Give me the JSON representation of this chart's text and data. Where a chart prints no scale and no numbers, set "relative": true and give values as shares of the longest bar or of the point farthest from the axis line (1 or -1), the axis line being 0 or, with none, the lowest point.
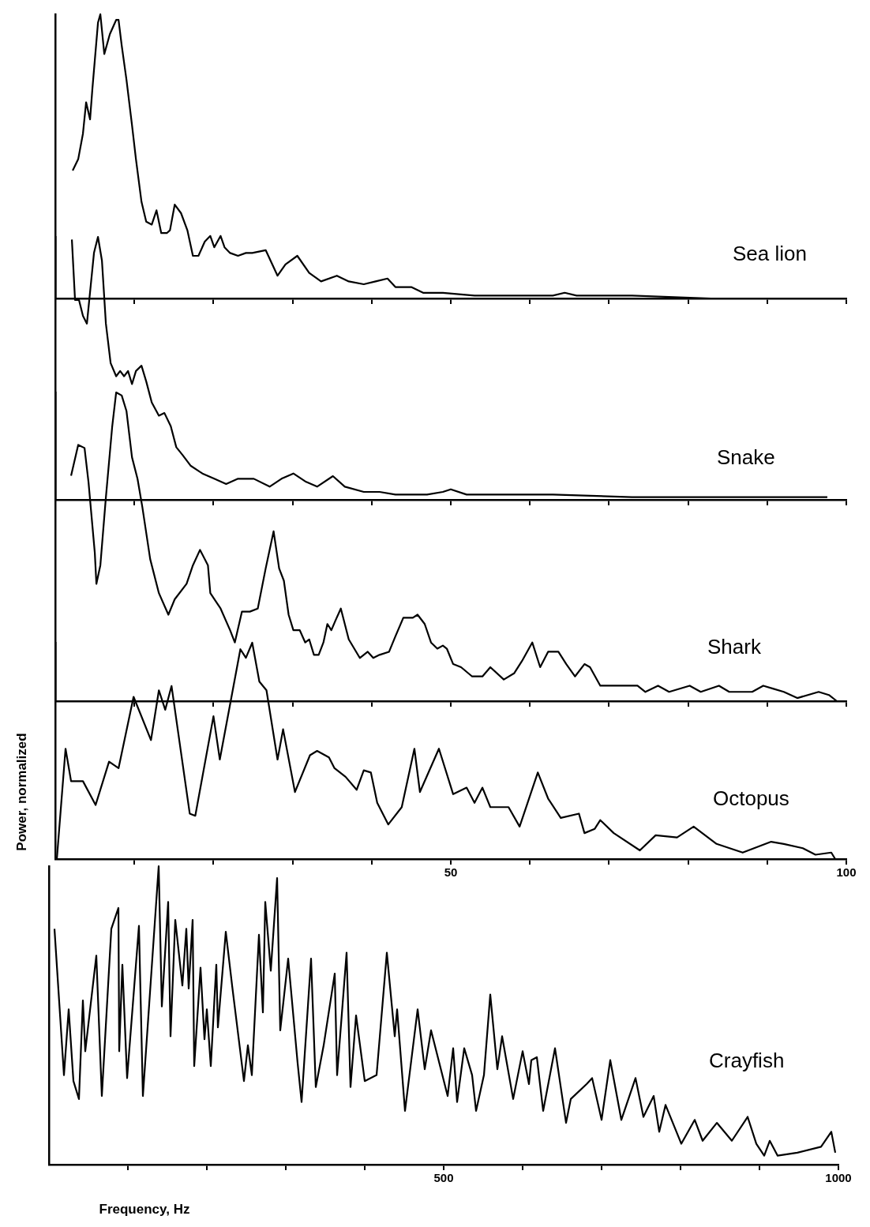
{
  "chart_data": [
    {
      "type": "line",
      "relative": true,
      "xlim": [
        0,
        100
      ],
      "xticks": [
        {
          "value": 10,
          "label": null
        },
        {
          "value": 20,
          "label": null
        },
        {
          "value": 30,
          "label": null
        },
        {
          "value": 40,
          "label": null
        },
        {
          "value": 50,
          "label": null
        },
        {
          "value": 60,
          "label": null
        },
        {
          "value": 70,
          "label": null
        },
        {
          "value": 80,
          "label": null
        },
        {
          "value": 90,
          "label": null
        },
        {
          "value": 100,
          "label": null
        }
      ],
      "tick_labels": false,
      "series": [
        {
          "name": "Sea lion",
          "color": "#000000",
          "x": [
            2.2,
            2.9,
            3.5,
            3.9,
            4.4,
            4.7,
            5.4,
            5.7,
            6.2,
            6.9,
            7.7,
            8.0,
            8.4,
            9.0,
            9.7,
            10.2,
            10.9,
            11.5,
            12.2,
            12.8,
            13.4,
            14.1,
            14.5,
            15.1,
            15.9,
            16.7,
            17.4,
            18.1,
            18.9,
            19.6,
            20.1,
            20.9,
            21.4,
            22.1,
            23.1,
            24.1,
            24.9,
            26.6,
            28.1,
            29.1,
            30.6,
            32.1,
            33.6,
            35.6,
            37.1,
            39.0,
            40.5,
            42.0,
            43.0,
            45.0,
            46.5,
            49.0,
            53.0,
            58.0,
            62.9,
            64.4,
            65.9,
            72.9,
            82.9,
            92.8,
            99.8
          ],
          "values": [
            0.45,
            0.49,
            0.58,
            0.69,
            0.63,
            0.74,
            0.97,
            1.0,
            0.86,
            0.93,
            0.98,
            0.98,
            0.89,
            0.77,
            0.61,
            0.49,
            0.34,
            0.27,
            0.26,
            0.31,
            0.23,
            0.23,
            0.24,
            0.33,
            0.3,
            0.24,
            0.15,
            0.15,
            0.2,
            0.22,
            0.18,
            0.22,
            0.18,
            0.16,
            0.15,
            0.16,
            0.16,
            0.17,
            0.08,
            0.12,
            0.15,
            0.09,
            0.06,
            0.08,
            0.06,
            0.05,
            0.06,
            0.07,
            0.04,
            0.04,
            0.02,
            0.02,
            0.01,
            0.01,
            0.01,
            0.02,
            0.01,
            0.01,
            0.0,
            0.0,
            0.0
          ]
        }
      ]
    },
    {
      "type": "line",
      "relative": true,
      "xlim": [
        0,
        100
      ],
      "xticks": [
        {
          "value": 10,
          "label": null
        },
        {
          "value": 20,
          "label": null
        },
        {
          "value": 30,
          "label": null
        },
        {
          "value": 40,
          "label": null
        },
        {
          "value": 50,
          "label": null
        },
        {
          "value": 60,
          "label": null
        },
        {
          "value": 70,
          "label": null
        },
        {
          "value": 80,
          "label": null
        },
        {
          "value": 90,
          "label": null
        },
        {
          "value": 100,
          "label": null
        }
      ],
      "tick_labels": false,
      "series": [
        {
          "name": "Snake",
          "color": "#000000",
          "x": [
            2.1,
            2.5,
            3.0,
            3.5,
            4.0,
            4.5,
            4.9,
            5.4,
            5.9,
            6.4,
            7.0,
            7.7,
            8.2,
            8.7,
            9.2,
            9.7,
            10.2,
            10.9,
            11.5,
            12.2,
            13.1,
            13.8,
            14.6,
            15.3,
            16.1,
            17.1,
            18.6,
            20.1,
            21.6,
            23.1,
            25.1,
            27.1,
            28.6,
            30.1,
            31.6,
            33.1,
            35.1,
            36.6,
            39.0,
            41.0,
            43.0,
            45.0,
            47.0,
            49.0,
            50.0,
            52.0,
            58.0,
            62.9,
            72.9,
            82.9,
            92.8,
            97.6
          ],
          "values": [
            0.99,
            0.76,
            0.76,
            0.7,
            0.67,
            0.82,
            0.94,
            1.0,
            0.91,
            0.67,
            0.52,
            0.47,
            0.49,
            0.47,
            0.49,
            0.44,
            0.49,
            0.51,
            0.45,
            0.37,
            0.32,
            0.33,
            0.28,
            0.2,
            0.17,
            0.13,
            0.1,
            0.08,
            0.06,
            0.08,
            0.08,
            0.05,
            0.08,
            0.1,
            0.07,
            0.05,
            0.09,
            0.05,
            0.03,
            0.03,
            0.02,
            0.02,
            0.02,
            0.03,
            0.04,
            0.02,
            0.02,
            0.02,
            0.01,
            0.01,
            0.01,
            0.01
          ]
        }
      ]
    },
    {
      "type": "line",
      "relative": true,
      "xlim": [
        0,
        100
      ],
      "xticks": [
        {
          "value": 10,
          "label": null
        },
        {
          "value": 20,
          "label": null
        },
        {
          "value": 30,
          "label": null
        },
        {
          "value": 40,
          "label": null
        },
        {
          "value": 50,
          "label": null
        },
        {
          "value": 60,
          "label": null
        },
        {
          "value": 70,
          "label": null
        },
        {
          "value": 80,
          "label": null
        },
        {
          "value": 90,
          "label": null
        },
        {
          "value": 100,
          "label": null
        }
      ],
      "tick_labels": false,
      "series": [
        {
          "name": "Shark",
          "color": "#000000",
          "x": [
            2.0,
            2.9,
            3.7,
            4.2,
            5.0,
            5.2,
            5.7,
            6.4,
            7.2,
            7.7,
            8.4,
            9.0,
            9.7,
            10.4,
            11.0,
            12.0,
            13.1,
            14.3,
            15.1,
            16.6,
            17.4,
            18.3,
            19.3,
            19.6,
            20.9,
            22.1,
            22.7,
            23.6,
            24.6,
            25.6,
            26.6,
            27.6,
            28.3,
            28.9,
            29.5,
            30.1,
            30.9,
            31.6,
            32.1,
            32.7,
            33.3,
            33.9,
            34.4,
            34.9,
            35.4,
            36.1,
            37.1,
            38.5,
            39.5,
            40.2,
            41.0,
            42.2,
            43.0,
            44.0,
            45.2,
            45.8,
            46.7,
            47.5,
            48.3,
            49.0,
            49.5,
            50.3,
            51.3,
            52.7,
            54.0,
            55.0,
            56.7,
            58.0,
            59.0,
            60.3,
            61.3,
            62.3,
            63.6,
            64.6,
            65.7,
            66.9,
            67.6,
            68.9,
            70.2,
            72.2,
            73.6,
            74.6,
            76.2,
            77.6,
            80.2,
            81.6,
            83.9,
            85.2,
            88.1,
            89.5,
            90.8,
            92.1,
            93.8,
            96.5,
            97.8,
            98.8
          ],
          "values": [
            0.73,
            0.83,
            0.82,
            0.71,
            0.48,
            0.38,
            0.44,
            0.66,
            0.89,
            1.0,
            0.99,
            0.94,
            0.79,
            0.72,
            0.63,
            0.46,
            0.35,
            0.28,
            0.33,
            0.38,
            0.44,
            0.49,
            0.44,
            0.35,
            0.3,
            0.23,
            0.19,
            0.29,
            0.29,
            0.3,
            0.43,
            0.55,
            0.43,
            0.39,
            0.28,
            0.23,
            0.23,
            0.19,
            0.2,
            0.15,
            0.15,
            0.19,
            0.25,
            0.23,
            0.26,
            0.3,
            0.2,
            0.14,
            0.16,
            0.14,
            0.15,
            0.16,
            0.21,
            0.27,
            0.27,
            0.28,
            0.25,
            0.19,
            0.17,
            0.18,
            0.17,
            0.12,
            0.11,
            0.08,
            0.08,
            0.11,
            0.07,
            0.09,
            0.13,
            0.19,
            0.11,
            0.16,
            0.16,
            0.12,
            0.08,
            0.12,
            0.11,
            0.05,
            0.05,
            0.05,
            0.05,
            0.03,
            0.05,
            0.03,
            0.05,
            0.03,
            0.05,
            0.03,
            0.03,
            0.05,
            0.04,
            0.03,
            0.01,
            0.03,
            0.02,
            0.0
          ]
        }
      ]
    },
    {
      "type": "line",
      "relative": true,
      "xlim": [
        0,
        100
      ],
      "xticks": [
        {
          "value": 10,
          "label": null
        },
        {
          "value": 20,
          "label": null
        },
        {
          "value": 30,
          "label": null
        },
        {
          "value": 40,
          "label": null
        },
        50,
        {
          "value": 60,
          "label": null
        },
        {
          "value": 70,
          "label": null
        },
        {
          "value": 80,
          "label": null
        },
        {
          "value": 90,
          "label": null
        },
        100
      ],
      "tick_labels": "x",
      "ylabel": "Power, normalized",
      "series": [
        {
          "name": "Octopus",
          "color": "#000000",
          "x": [
            0.2,
            1.3,
            2.0,
            3.5,
            5.1,
            6.8,
            8.0,
            9.9,
            12.1,
            13.1,
            13.9,
            14.7,
            17.0,
            17.7,
            20.0,
            20.8,
            23.4,
            24.1,
            24.9,
            25.8,
            26.7,
            28.1,
            28.8,
            30.3,
            32.2,
            33.1,
            34.6,
            35.3,
            36.7,
            38.1,
            39.0,
            39.9,
            40.7,
            42.1,
            43.8,
            45.4,
            46.1,
            48.5,
            50.3,
            52.0,
            53.0,
            54.0,
            55.0,
            57.3,
            58.7,
            61.0,
            62.3,
            63.9,
            66.2,
            66.9,
            68.2,
            68.9,
            70.6,
            73.9,
            75.9,
            78.6,
            80.7,
            83.6,
            86.9,
            90.5,
            92.1,
            94.5,
            96.1,
            98.1,
            98.6
          ],
          "values": [
            0.0,
            0.51,
            0.36,
            0.36,
            0.25,
            0.45,
            0.42,
            0.75,
            0.55,
            0.78,
            0.69,
            0.8,
            0.21,
            0.2,
            0.66,
            0.46,
            0.97,
            0.93,
            1.0,
            0.82,
            0.78,
            0.46,
            0.6,
            0.31,
            0.48,
            0.5,
            0.47,
            0.42,
            0.38,
            0.32,
            0.41,
            0.4,
            0.26,
            0.16,
            0.24,
            0.51,
            0.31,
            0.51,
            0.3,
            0.33,
            0.26,
            0.33,
            0.24,
            0.24,
            0.15,
            0.4,
            0.28,
            0.19,
            0.21,
            0.12,
            0.14,
            0.18,
            0.12,
            0.04,
            0.11,
            0.1,
            0.15,
            0.07,
            0.03,
            0.08,
            0.07,
            0.05,
            0.02,
            0.03,
            0.0
          ]
        }
      ]
    },
    {
      "type": "line",
      "relative": true,
      "xlim": [
        0,
        1000
      ],
      "xticks": [
        {
          "value": 100,
          "label": null
        },
        {
          "value": 200,
          "label": null
        },
        {
          "value": 300,
          "label": null
        },
        {
          "value": 400,
          "label": null
        },
        500,
        {
          "value": 600,
          "label": null
        },
        {
          "value": 700,
          "label": null
        },
        {
          "value": 800,
          "label": null
        },
        {
          "value": 900,
          "label": null
        },
        1000
      ],
      "tick_labels": "x",
      "xlabel": "Frequency, Hz",
      "series": [
        {
          "name": "Crayfish",
          "color": "#000000",
          "x": [
            7,
            19,
            25,
            31,
            38,
            43,
            46,
            60,
            67,
            79,
            88,
            89,
            93,
            99,
            114,
            119,
            139,
            143,
            151,
            154,
            160,
            169,
            174,
            177,
            182,
            184,
            192,
            197,
            200,
            205,
            212,
            214,
            224,
            232,
            247,
            252,
            257,
            266,
            271,
            274,
            281,
            289,
            293,
            303,
            315,
            320,
            332,
            338,
            348,
            362,
            365,
            377,
            382,
            389,
            400,
            415,
            428,
            438,
            441,
            451,
            467,
            476,
            484,
            505,
            512,
            517,
            526,
            536,
            541,
            551,
            559,
            568,
            574,
            588,
            600,
            608,
            611,
            618,
            626,
            641,
            655,
            661,
            681,
            688,
            700,
            711,
            725,
            743,
            753,
            766,
            773,
            781,
            801,
            818,
            828,
            846,
            865,
            885,
            896,
            906,
            913,
            923,
            948,
            978,
            991,
            996
          ],
          "values": [
            0.79,
            0.3,
            0.52,
            0.28,
            0.22,
            0.55,
            0.38,
            0.7,
            0.23,
            0.79,
            0.86,
            0.38,
            0.67,
            0.29,
            0.8,
            0.23,
            1.0,
            0.53,
            0.88,
            0.43,
            0.82,
            0.6,
            0.79,
            0.59,
            0.82,
            0.33,
            0.66,
            0.42,
            0.52,
            0.33,
            0.67,
            0.46,
            0.78,
            0.6,
            0.28,
            0.4,
            0.3,
            0.77,
            0.51,
            0.88,
            0.65,
            0.96,
            0.45,
            0.69,
            0.34,
            0.21,
            0.69,
            0.26,
            0.4,
            0.64,
            0.3,
            0.71,
            0.26,
            0.5,
            0.28,
            0.3,
            0.71,
            0.43,
            0.52,
            0.18,
            0.52,
            0.32,
            0.45,
            0.23,
            0.39,
            0.21,
            0.39,
            0.3,
            0.18,
            0.3,
            0.57,
            0.32,
            0.43,
            0.22,
            0.38,
            0.27,
            0.35,
            0.36,
            0.18,
            0.39,
            0.14,
            0.22,
            0.27,
            0.29,
            0.15,
            0.35,
            0.15,
            0.29,
            0.16,
            0.23,
            0.11,
            0.2,
            0.07,
            0.15,
            0.08,
            0.14,
            0.08,
            0.16,
            0.07,
            0.03,
            0.08,
            0.03,
            0.04,
            0.06,
            0.11,
            0.04
          ]
        }
      ]
    }
  ]
}
